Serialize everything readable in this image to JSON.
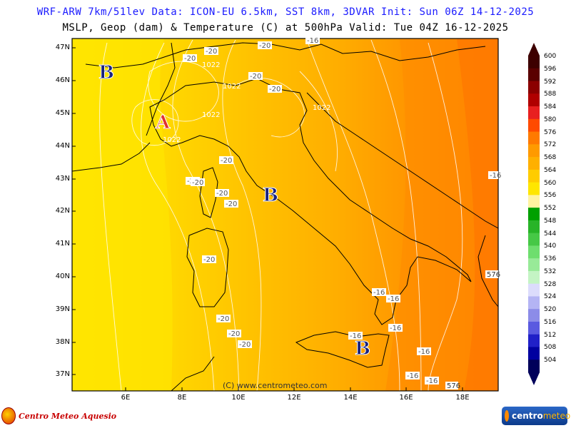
{
  "header": {
    "line1": "WRF-ARW 7km/51lev  Data: ICON-EU 6.5km, SST 8km, 3DVAR  Init: Sun 06Z 14-12-2025",
    "line2": "MSLP, Geop (dam) & Temperature (C) at 500hPa  Valid: Tue 04Z 16-12-2025"
  },
  "map": {
    "lat_labels": [
      "47N",
      "46N",
      "45N",
      "44N",
      "43N",
      "42N",
      "41N",
      "40N",
      "39N",
      "38N",
      "37N"
    ],
    "lon_labels": [
      "6E",
      "8E",
      "10E",
      "12E",
      "14E",
      "16E",
      "18E"
    ],
    "pressure_centers": [
      {
        "type": "low",
        "label": "B",
        "color": "#1a237e"
      },
      {
        "type": "high",
        "label": "A",
        "color": "#e03030"
      },
      {
        "type": "low",
        "label": "B",
        "color": "#1a237e"
      },
      {
        "type": "low",
        "label": "B",
        "color": "#1a237e"
      }
    ],
    "isobar_labels": [
      "1022",
      "1022",
      "1022",
      "1022",
      "1022"
    ],
    "temperature_labels": [
      "-20",
      "-20",
      "-20",
      "-20",
      "-20",
      "-20",
      "-20",
      "-20",
      "-20",
      "-20",
      "-20",
      "-20",
      "-20",
      "-20",
      "-16",
      "-16",
      "-16",
      "-16",
      "-16",
      "-16",
      "-16",
      "-16",
      "-16"
    ],
    "geopotential_labels": [
      "576",
      "576"
    ],
    "credit": "(C) www.centrometeo.com"
  },
  "colorbar": {
    "levels": [
      "600",
      "596",
      "592",
      "588",
      "584",
      "580",
      "576",
      "572",
      "568",
      "564",
      "560",
      "556",
      "552",
      "548",
      "544",
      "540",
      "536",
      "532",
      "528",
      "524",
      "520",
      "516",
      "512",
      "508",
      "504"
    ],
    "colors": [
      "#3d0000",
      "#5a0000",
      "#8b0000",
      "#b00000",
      "#e82020",
      "#ff4a00",
      "#ff7a00",
      "#ff9a00",
      "#ffb000",
      "#ffcc00",
      "#ffe600",
      "#fff3a0",
      "#00a000",
      "#28b428",
      "#46c846",
      "#6ede6e",
      "#98ea98",
      "#c4f4c4",
      "#dcdcfc",
      "#b4b4f4",
      "#8c8ce8",
      "#5a5ae0",
      "#2020c8",
      "#0000a0",
      "#00005a"
    ]
  },
  "logos": {
    "left": "Centro Meteo Aquesio",
    "right_a": "centro",
    "right_b": "meteo"
  }
}
